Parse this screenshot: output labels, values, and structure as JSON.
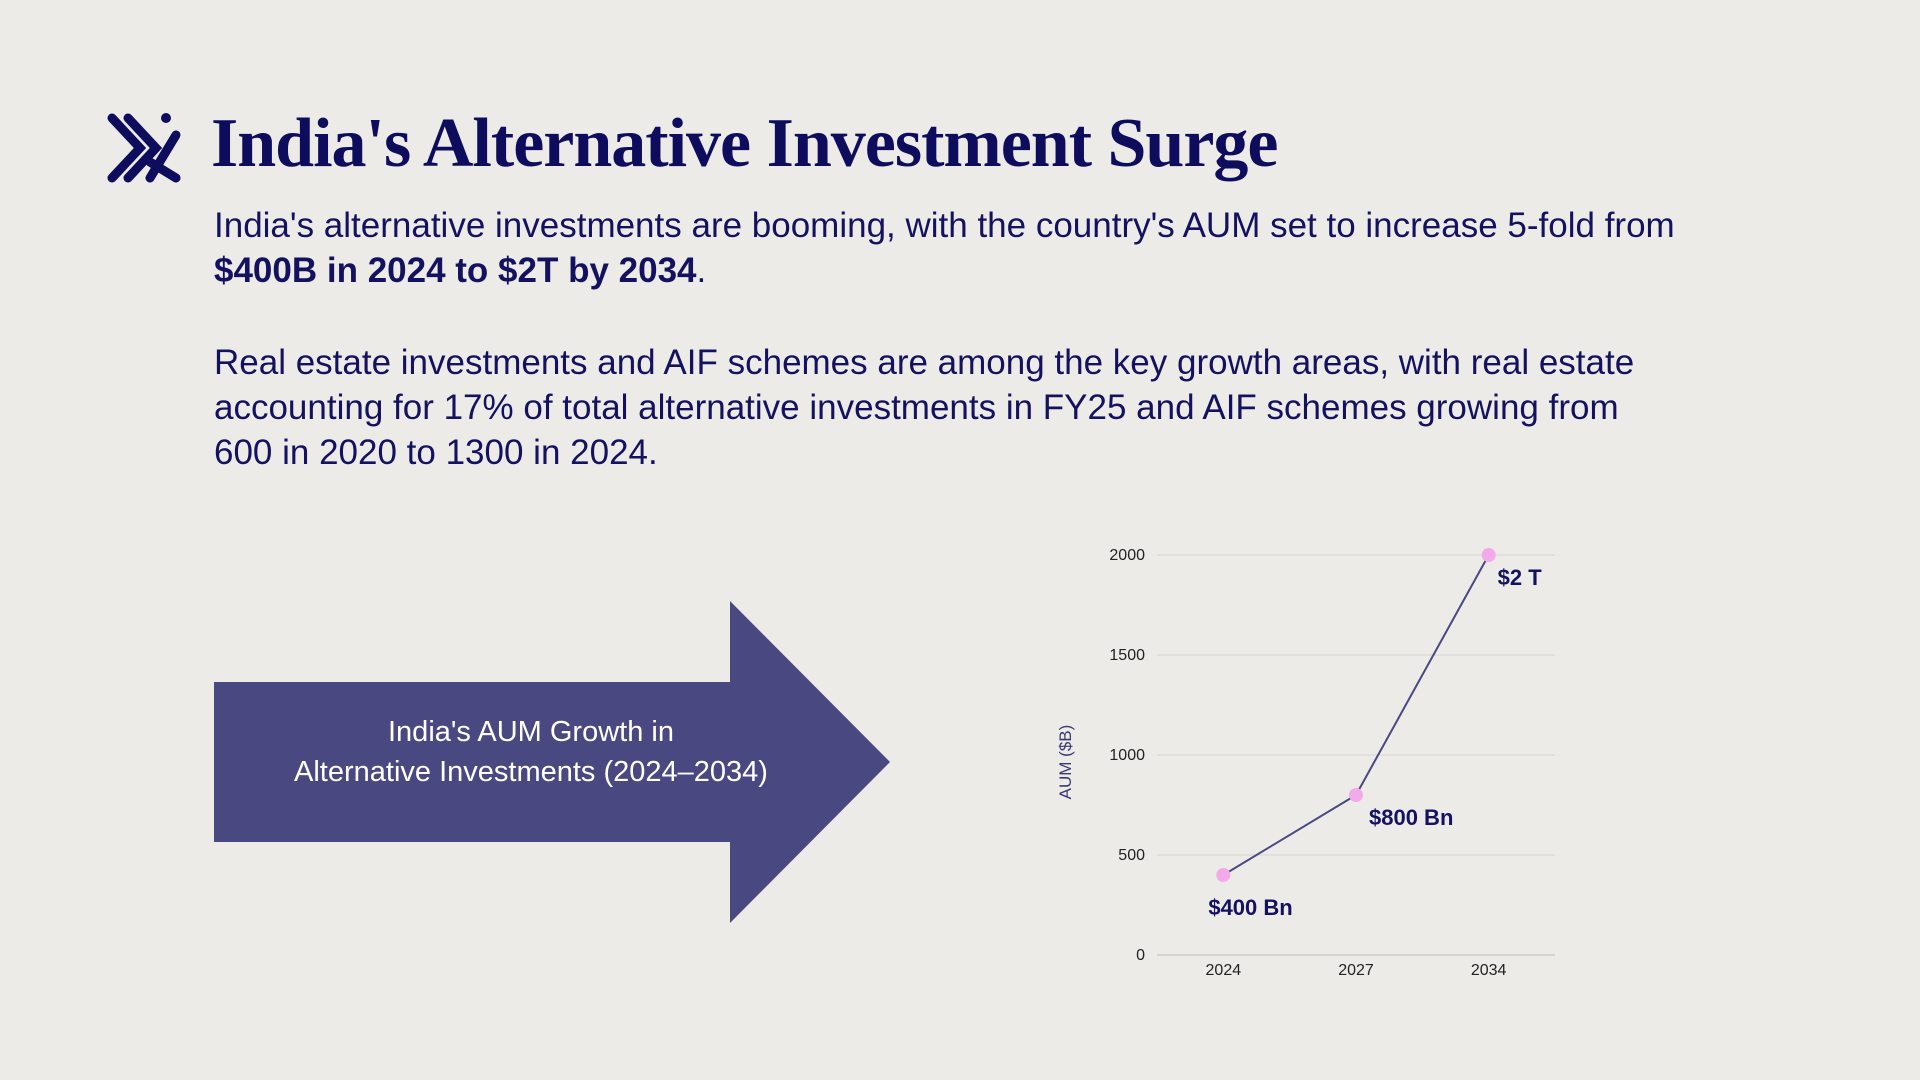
{
  "title": "India's Alternative Investment Surge",
  "intro": {
    "text": "India's alternative investments are booming, with the country's AUM set to increase 5-fold from ",
    "bold": "$400B in 2024 to $2T by 2034",
    "end": "."
  },
  "detail": "Real estate investments and AIF schemes are among the key growth areas, with real estate accounting for 17% of total alternative investments in FY25 and AIF schemes growing from 600 in 2020 to 1300 in 2024.",
  "arrow_label": "India's AUM Growth in Alternative Investments (2024–2034)",
  "chart_data": {
    "type": "line",
    "y_label": "AUM ($B)",
    "categories": [
      "2024",
      "2027",
      "2034"
    ],
    "series": [
      {
        "name": "AUM",
        "color": "#4a4880",
        "marker_color": "#f2aaea",
        "values": [
          400,
          800,
          2000
        ],
        "value_labels": [
          "$400 Bn",
          "$800 Bn",
          "$2 T"
        ]
      }
    ],
    "ylim": [
      0,
      2000
    ],
    "yticks": [
      0,
      500,
      1000,
      1500,
      2000
    ],
    "grid": true
  }
}
